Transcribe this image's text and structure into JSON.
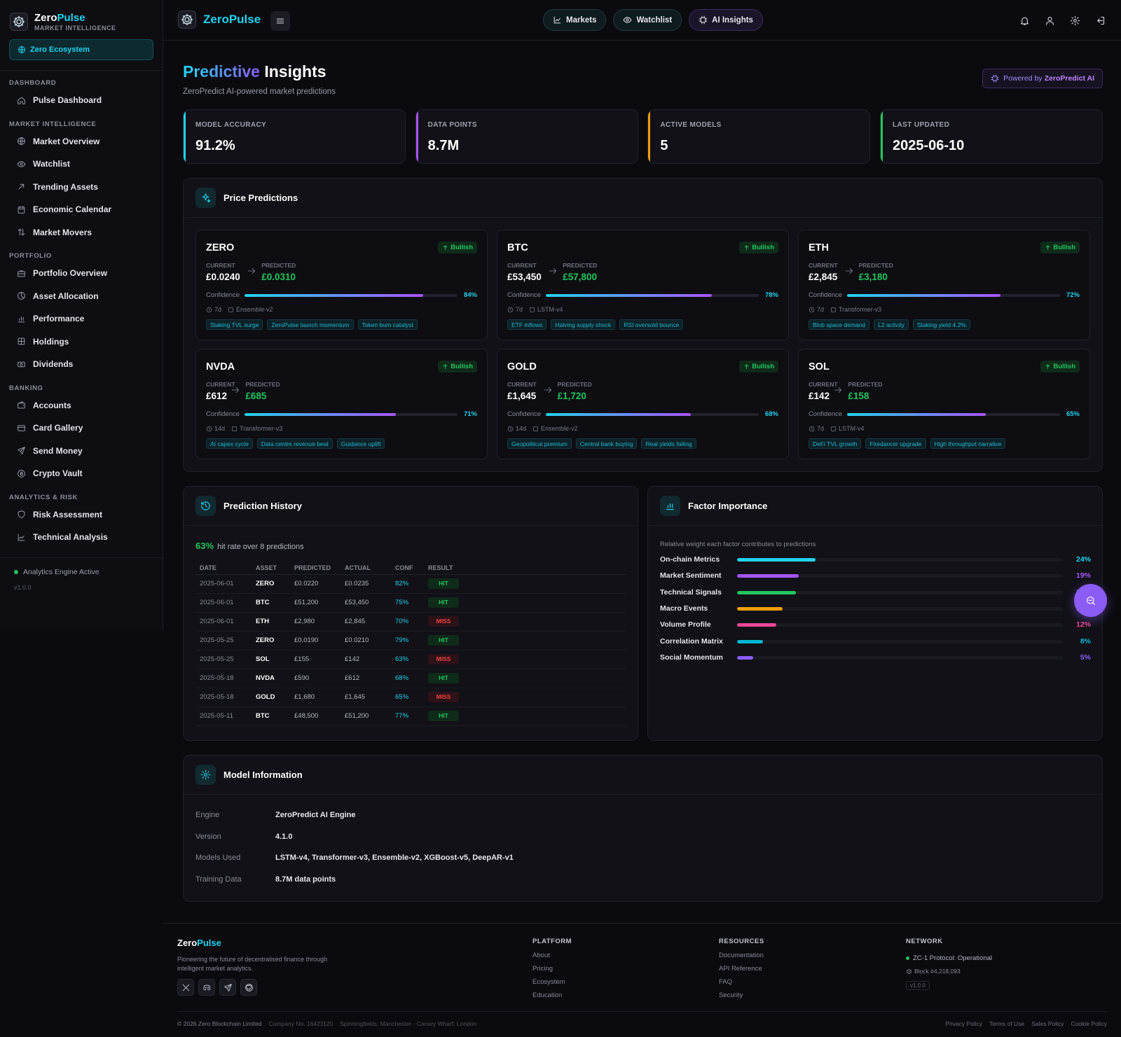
{
  "sidebar": {
    "brand_name_1": "Zero",
    "brand_name_2": "Pulse",
    "brand_sub": "MARKET INTELLIGENCE",
    "ecosystem_label": "Zero Ecosystem",
    "sections": [
      {
        "title": "DASHBOARD",
        "items": [
          {
            "label": "Pulse Dashboard",
            "icon": "home-icon"
          }
        ]
      },
      {
        "title": "MARKET INTELLIGENCE",
        "items": [
          {
            "label": "Market Overview",
            "icon": "globe-icon"
          },
          {
            "label": "Watchlist",
            "icon": "eye-icon"
          },
          {
            "label": "Trending Assets",
            "icon": "arrow-up-right-icon"
          },
          {
            "label": "Economic Calendar",
            "icon": "calendar-icon"
          },
          {
            "label": "Market Movers",
            "icon": "arrows-up-down-icon"
          }
        ]
      },
      {
        "title": "PORTFOLIO",
        "items": [
          {
            "label": "Portfolio Overview",
            "icon": "briefcase-icon"
          },
          {
            "label": "Asset Allocation",
            "icon": "pie-icon"
          },
          {
            "label": "Performance",
            "icon": "bar-chart-icon"
          },
          {
            "label": "Holdings",
            "icon": "grid-icon"
          },
          {
            "label": "Dividends",
            "icon": "banknote-icon"
          }
        ]
      },
      {
        "title": "BANKING",
        "items": [
          {
            "label": "Accounts",
            "icon": "wallet-icon"
          },
          {
            "label": "Card Gallery",
            "icon": "card-icon"
          },
          {
            "label": "Send Money",
            "icon": "send-icon"
          },
          {
            "label": "Crypto Vault",
            "icon": "coin-icon"
          }
        ]
      },
      {
        "title": "ANALYTICS & RISK",
        "items": [
          {
            "label": "Risk Assessment",
            "icon": "shield-icon"
          },
          {
            "label": "Technical Analysis",
            "icon": "line-chart-icon"
          }
        ]
      }
    ],
    "status": "Analytics Engine Active",
    "version": "v1.0.0"
  },
  "topbar": {
    "brand": "ZeroPulse",
    "tabs": [
      "Markets",
      "Watchlist",
      "AI Insights"
    ]
  },
  "header": {
    "title_1": "Predictive",
    "title_2": " Insights",
    "subtitle": "ZeroPredict AI-powered market predictions",
    "powered_prefix": "Powered by",
    "powered_brand": "ZeroPredict AI"
  },
  "stats": [
    {
      "label": "MODEL ACCURACY",
      "value": "91.2%",
      "color": "#22d3ee"
    },
    {
      "label": "DATA POINTS",
      "value": "8.7M",
      "color": "#a855f7"
    },
    {
      "label": "ACTIVE MODELS",
      "value": "5",
      "color": "#f59e0b"
    },
    {
      "label": "LAST UPDATED",
      "value": "2025-06-10",
      "color": "#22c55e"
    }
  ],
  "predictions": {
    "title": "Price Predictions",
    "current_label": "CURRENT",
    "predicted_label": "PREDICTED",
    "confidence_label": "Confidence",
    "cards": [
      {
        "symbol": "ZERO",
        "badge": "Bullish",
        "current": "£0.0240",
        "predicted": "£0.0310",
        "confidence": 84,
        "confidence_text": "84%",
        "horizon": "7d",
        "model": "Ensemble-v2",
        "tags": [
          "Staking TVL surge",
          "ZeroPulse launch momentum",
          "Token burn catalyst"
        ]
      },
      {
        "symbol": "BTC",
        "badge": "Bullish",
        "current": "£53,450",
        "predicted": "£57,800",
        "confidence": 78,
        "confidence_text": "78%",
        "horizon": "7d",
        "model": "LSTM-v4",
        "tags": [
          "ETF inflows",
          "Halving supply shock",
          "RSI oversold bounce"
        ]
      },
      {
        "symbol": "ETH",
        "badge": "Bullish",
        "current": "£2,845",
        "predicted": "£3,180",
        "confidence": 72,
        "confidence_text": "72%",
        "horizon": "7d",
        "model": "Transformer-v3",
        "tags": [
          "Blob space demand",
          "L2 activity",
          "Staking yield 4.2%"
        ]
      },
      {
        "symbol": "NVDA",
        "badge": "Bullish",
        "current": "£612",
        "predicted": "£685",
        "confidence": 71,
        "confidence_text": "71%",
        "horizon": "14d",
        "model": "Transformer-v3",
        "tags": [
          "AI capex cycle",
          "Data centre revenue beat",
          "Guidance uplift"
        ]
      },
      {
        "symbol": "GOLD",
        "badge": "Bullish",
        "current": "£1,645",
        "predicted": "£1,720",
        "confidence": 68,
        "confidence_text": "68%",
        "horizon": "14d",
        "model": "Ensemble-v2",
        "tags": [
          "Geopolitical premium",
          "Central bank buying",
          "Real yields falling"
        ]
      },
      {
        "symbol": "SOL",
        "badge": "Bullish",
        "current": "£142",
        "predicted": "£158",
        "confidence": 65,
        "confidence_text": "65%",
        "horizon": "7d",
        "model": "LSTM-v4",
        "tags": [
          "DeFi TVL growth",
          "Firedancer upgrade",
          "High throughput narrative"
        ]
      }
    ]
  },
  "history": {
    "title": "Prediction History",
    "hit_rate": "63%",
    "hit_rate_text": "hit rate over 8 predictions",
    "columns": [
      "DATE",
      "ASSET",
      "PREDICTED",
      "ACTUAL",
      "CONF",
      "RESULT"
    ],
    "rows": [
      {
        "date": "2025-06-01",
        "asset": "ZERO",
        "predicted": "£0.0220",
        "actual": "£0.0235",
        "conf": "82%",
        "result": "HIT"
      },
      {
        "date": "2025-06-01",
        "asset": "BTC",
        "predicted": "£51,200",
        "actual": "£53,450",
        "conf": "75%",
        "result": "HIT"
      },
      {
        "date": "2025-06-01",
        "asset": "ETH",
        "predicted": "£2,980",
        "actual": "£2,845",
        "conf": "70%",
        "result": "MISS"
      },
      {
        "date": "2025-05-25",
        "asset": "ZERO",
        "predicted": "£0.0190",
        "actual": "£0.0210",
        "conf": "79%",
        "result": "HIT"
      },
      {
        "date": "2025-05-25",
        "asset": "SOL",
        "predicted": "£155",
        "actual": "£142",
        "conf": "63%",
        "result": "MISS"
      },
      {
        "date": "2025-05-18",
        "asset": "NVDA",
        "predicted": "£590",
        "actual": "£612",
        "conf": "68%",
        "result": "HIT"
      },
      {
        "date": "2025-05-18",
        "asset": "GOLD",
        "predicted": "£1,680",
        "actual": "£1,645",
        "conf": "65%",
        "result": "MISS"
      },
      {
        "date": "2025-05-11",
        "asset": "BTC",
        "predicted": "£48,500",
        "actual": "£51,200",
        "conf": "77%",
        "result": "HIT"
      }
    ]
  },
  "factors": {
    "title": "Factor Importance",
    "subtitle": "Relative weight each factor contributes to predictions",
    "items": [
      {
        "name": "On-chain Metrics",
        "value": 24,
        "label": "24%",
        "color": "#22d3ee"
      },
      {
        "name": "Market Sentiment",
        "value": 19,
        "label": "19%",
        "color": "#a855f7"
      },
      {
        "name": "Technical Signals",
        "value": 18,
        "label": "18%",
        "color": "#22c55e"
      },
      {
        "name": "Macro Events",
        "value": 14,
        "label": "14%",
        "color": "#f59e0b"
      },
      {
        "name": "Volume Profile",
        "value": 12,
        "label": "12%",
        "color": "#ec4899"
      },
      {
        "name": "Correlation Matrix",
        "value": 8,
        "label": "8%",
        "color": "#06b6d4"
      },
      {
        "name": "Social Momentum",
        "value": 5,
        "label": "5%",
        "color": "#8b5cf6"
      }
    ]
  },
  "model_info": {
    "title": "Model Information",
    "rows": [
      {
        "key": "Engine",
        "value": "ZeroPredict AI Engine"
      },
      {
        "key": "Version",
        "value": "4.1.0"
      },
      {
        "key": "Models Used",
        "value": "LSTM-v4, Transformer-v3, Ensemble-v2, XGBoost-v5, DeepAR-v1"
      },
      {
        "key": "Training Data",
        "value": "8.7M data points"
      }
    ]
  },
  "footer": {
    "brand_1": "Zero",
    "brand_2": "Pulse",
    "description": "Pioneering the future of decentralised finance through intelligent market analytics.",
    "platform": {
      "title": "PLATFORM",
      "links": [
        "About",
        "Pricing",
        "Ecosystem",
        "Education"
      ]
    },
    "resources": {
      "title": "RESOURCES",
      "links": [
        "Documentation",
        "API Reference",
        "FAQ",
        "Security"
      ]
    },
    "network": {
      "title": "NETWORK",
      "status": "ZC-1 Protocol: Operational",
      "block": "Block #4,218,093",
      "version": "v1.0.0"
    },
    "copyright": "© 2026 Zero Blockchain Limited",
    "company": "Company No. 16421120",
    "address": "Spinningfields, Manchester · Canary Wharf, London",
    "legal_links": [
      "Privacy Policy",
      "Terms of Use",
      "Sales Policy",
      "Cookie Policy"
    ]
  }
}
